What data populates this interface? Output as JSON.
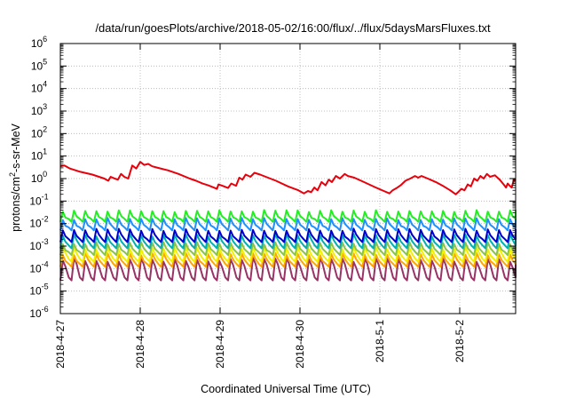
{
  "chart_data": {
    "type": "line",
    "title": "/data/run/goesPlots/archive/2018-05-02/16:00/flux/../flux/5daysMarsFluxes.txt",
    "xlabel": "Coordinated Universal Time (UTC)",
    "ylabel_parts": {
      "pre": "protons/cm",
      "sup": "2",
      "post": "-s-sr-MeV"
    },
    "y_scale": "log",
    "ylim_exponents": [
      -6,
      6
    ],
    "y_ticks": [
      {
        "base": "10",
        "exp": "-6"
      },
      {
        "base": "10",
        "exp": "-5"
      },
      {
        "base": "10",
        "exp": "-4"
      },
      {
        "base": "10",
        "exp": "-3"
      },
      {
        "base": "10",
        "exp": "-2"
      },
      {
        "base": "10",
        "exp": "-1"
      },
      {
        "base": "10",
        "exp": "0"
      },
      {
        "base": "10",
        "exp": "1"
      },
      {
        "base": "10",
        "exp": "2"
      },
      {
        "base": "10",
        "exp": "3"
      },
      {
        "base": "10",
        "exp": "4"
      },
      {
        "base": "10",
        "exp": "5"
      },
      {
        "base": "10",
        "exp": "6"
      }
    ],
    "x_ticks": [
      "2018-4-27",
      "2018-4-28",
      "2018-4-29",
      "2018-4-30",
      "2018-5-1",
      "2018-5-2"
    ],
    "xlim_days": [
      0,
      5.7
    ],
    "grid": true,
    "legend": "none",
    "series": [
      {
        "color": "#e8000b",
        "points": [
          [
            0.0,
            3.5
          ],
          [
            0.05,
            3.8
          ],
          [
            0.12,
            2.8
          ],
          [
            0.25,
            2.0
          ],
          [
            0.4,
            1.5
          ],
          [
            0.55,
            1.0
          ],
          [
            0.6,
            0.8
          ],
          [
            0.63,
            1.2
          ],
          [
            0.68,
            1.0
          ],
          [
            0.72,
            0.9
          ],
          [
            0.76,
            1.6
          ],
          [
            0.8,
            1.2
          ],
          [
            0.85,
            1.0
          ],
          [
            0.9,
            3.8
          ],
          [
            0.95,
            2.8
          ],
          [
            1.0,
            5.5
          ],
          [
            1.05,
            4.0
          ],
          [
            1.1,
            4.5
          ],
          [
            1.15,
            3.5
          ],
          [
            1.22,
            3.0
          ],
          [
            1.35,
            2.3
          ],
          [
            1.48,
            1.6
          ],
          [
            1.62,
            1.0
          ],
          [
            1.7,
            0.8
          ],
          [
            1.78,
            0.6
          ],
          [
            1.85,
            0.5
          ],
          [
            1.92,
            0.4
          ],
          [
            1.96,
            0.35
          ],
          [
            1.98,
            0.55
          ],
          [
            2.05,
            0.45
          ],
          [
            2.1,
            0.38
          ],
          [
            2.14,
            0.6
          ],
          [
            2.2,
            0.48
          ],
          [
            2.24,
            1.1
          ],
          [
            2.28,
            0.9
          ],
          [
            2.32,
            1.5
          ],
          [
            2.38,
            1.2
          ],
          [
            2.43,
            1.8
          ],
          [
            2.5,
            1.5
          ],
          [
            2.7,
            0.8
          ],
          [
            2.85,
            0.45
          ],
          [
            2.98,
            0.3
          ],
          [
            3.05,
            0.22
          ],
          [
            3.1,
            0.28
          ],
          [
            3.14,
            0.25
          ],
          [
            3.18,
            0.4
          ],
          [
            3.22,
            0.3
          ],
          [
            3.27,
            0.7
          ],
          [
            3.32,
            0.5
          ],
          [
            3.36,
            0.9
          ],
          [
            3.4,
            0.7
          ],
          [
            3.45,
            1.3
          ],
          [
            3.5,
            1.0
          ],
          [
            3.56,
            1.6
          ],
          [
            3.6,
            1.3
          ],
          [
            3.68,
            1.1
          ],
          [
            3.8,
            0.7
          ],
          [
            3.95,
            0.4
          ],
          [
            4.05,
            0.28
          ],
          [
            4.12,
            0.22
          ],
          [
            4.16,
            0.3
          ],
          [
            4.22,
            0.4
          ],
          [
            4.26,
            0.5
          ],
          [
            4.32,
            0.8
          ],
          [
            4.38,
            1.0
          ],
          [
            4.44,
            1.3
          ],
          [
            4.48,
            1.1
          ],
          [
            4.52,
            1.3
          ],
          [
            4.6,
            1.0
          ],
          [
            4.7,
            0.7
          ],
          [
            4.8,
            0.45
          ],
          [
            4.88,
            0.3
          ],
          [
            4.95,
            0.2
          ],
          [
            4.98,
            0.25
          ],
          [
            5.02,
            0.35
          ],
          [
            5.06,
            0.3
          ],
          [
            5.1,
            0.55
          ],
          [
            5.14,
            0.45
          ],
          [
            5.18,
            1.0
          ],
          [
            5.22,
            0.8
          ],
          [
            5.26,
            1.3
          ],
          [
            5.3,
            1.0
          ],
          [
            5.34,
            1.6
          ],
          [
            5.38,
            1.2
          ],
          [
            5.44,
            1.4
          ],
          [
            5.5,
            0.9
          ],
          [
            5.55,
            0.55
          ],
          [
            5.58,
            0.4
          ],
          [
            5.6,
            0.6
          ],
          [
            5.62,
            0.5
          ],
          [
            5.65,
            0.4
          ],
          [
            5.68,
            0.95
          ],
          [
            5.7,
            0.8
          ]
        ]
      },
      {
        "color": "#22ee22",
        "base": 0.012,
        "peak": 0.04,
        "period": 0.14
      },
      {
        "color": "#1e90ff",
        "base": 0.005,
        "peak": 0.018,
        "period": 0.14
      },
      {
        "color": "#0000cc",
        "base": 0.0015,
        "peak": 0.006,
        "period": 0.14
      },
      {
        "color": "#00b0b0",
        "base": 0.0008,
        "peak": 0.0035,
        "period": 0.14
      },
      {
        "color": "#8bc34a",
        "base": 0.0004,
        "peak": 0.0015,
        "period": 0.14
      },
      {
        "color": "#f2f200",
        "base": 0.0002,
        "peak": 0.0009,
        "period": 0.14
      },
      {
        "color": "#ffa500",
        "base": 0.00012,
        "peak": 0.0005,
        "period": 0.14
      },
      {
        "color": "#993366",
        "base": 3e-05,
        "peak": 0.0003,
        "period": 0.14
      }
    ]
  }
}
